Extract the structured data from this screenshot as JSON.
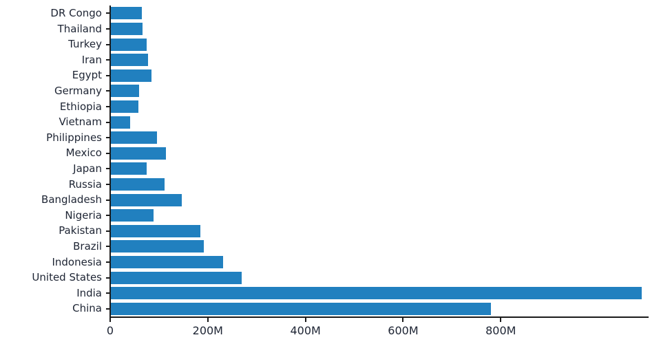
{
  "chart_data": {
    "type": "bar",
    "orientation": "horizontal",
    "title": "",
    "xlabel": "",
    "ylabel": "",
    "grid": false,
    "legend": false,
    "categories_top_to_bottom": [
      "DR Congo",
      "Thailand",
      "Turkey",
      "Iran",
      "Egypt",
      "Germany",
      "Ethiopia",
      "Vietnam",
      "Philippines",
      "Mexico",
      "Japan",
      "Russia",
      "Bangladesh",
      "Nigeria",
      "Pakistan",
      "Brazil",
      "Indonesia",
      "United States",
      "India",
      "China"
    ],
    "values_millions": [
      64,
      65,
      73,
      76,
      83,
      58,
      56,
      40,
      95,
      113,
      73,
      110,
      146,
      87,
      184,
      191,
      230,
      268,
      1090,
      780
    ],
    "x_ticks": [
      {
        "value": 0,
        "label": "0"
      },
      {
        "value": 200,
        "label": "200M"
      },
      {
        "value": 400,
        "label": "400M"
      },
      {
        "value": 600,
        "label": "600M"
      },
      {
        "value": 800,
        "label": "800M"
      }
    ],
    "x_max_millions": 1100,
    "bar_color": "#2180bf",
    "axis_color": "#1a1a1a",
    "label_color": "#1d2433",
    "background_color": "#ffffff"
  }
}
